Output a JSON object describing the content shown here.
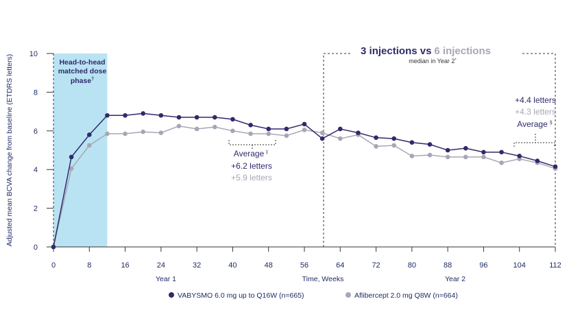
{
  "chart_data": {
    "type": "line",
    "ylabel": "Adjusted mean BCVA change from baseline (ETDRS letters)",
    "xlabel": "Time, Weeks",
    "year_labels": [
      "Year 1",
      "Year 2"
    ],
    "xlim": [
      0,
      112
    ],
    "ylim": [
      0,
      10
    ],
    "x_ticks": [
      0,
      8,
      16,
      24,
      32,
      40,
      48,
      56,
      64,
      72,
      80,
      88,
      96,
      104,
      112
    ],
    "y_ticks": [
      0,
      2,
      4,
      6,
      8,
      10
    ],
    "x": [
      0,
      4,
      8,
      12,
      16,
      20,
      24,
      28,
      32,
      36,
      40,
      44,
      48,
      52,
      56,
      60,
      64,
      68,
      72,
      76,
      80,
      84,
      88,
      92,
      96,
      100,
      104,
      108,
      112
    ],
    "series": [
      {
        "name": "VABYSMO 6.0 mg up to Q16W (n=665)",
        "color": "#2e2a6b",
        "values": [
          0,
          4.65,
          5.8,
          6.8,
          6.8,
          6.9,
          6.8,
          6.7,
          6.7,
          6.7,
          6.6,
          6.3,
          6.1,
          6.1,
          6.35,
          5.6,
          6.1,
          5.9,
          5.65,
          5.6,
          5.4,
          5.3,
          5.0,
          5.1,
          4.9,
          4.9,
          4.7,
          4.45,
          4.15
        ]
      },
      {
        "name": "Aflibercept 2.0 mg Q8W (n=664)",
        "color": "#a8a6b4",
        "values": [
          0,
          4.05,
          5.25,
          5.85,
          5.85,
          5.95,
          5.9,
          6.25,
          6.1,
          6.2,
          6.0,
          5.85,
          5.85,
          5.75,
          6.05,
          5.9,
          5.6,
          5.8,
          5.2,
          5.25,
          4.7,
          4.75,
          4.65,
          4.65,
          4.65,
          4.35,
          4.55,
          4.35,
          4.05
        ]
      }
    ],
    "shaded_region": {
      "x": [
        0,
        12
      ],
      "label_lines": [
        "Head-to-head",
        "matched dose",
        "phase"
      ],
      "label_mark": "†",
      "color": "#b9e3f2"
    },
    "annotations": {
      "headline_a": "3 injections vs",
      "headline_b": "6 injections",
      "headline_sub": "median in Year 2",
      "headline_sub_mark": "*",
      "avg1_label": "Average",
      "avg1_mark": "‡",
      "avg1_a": "+6.2 letters",
      "avg1_b": "+5.9 letters",
      "avg2_a": "+4.4 letters",
      "avg2_b": "+4.3 letters",
      "avg2_label": "Average",
      "avg2_mark": "§"
    },
    "legend_position": "bottom-center"
  }
}
